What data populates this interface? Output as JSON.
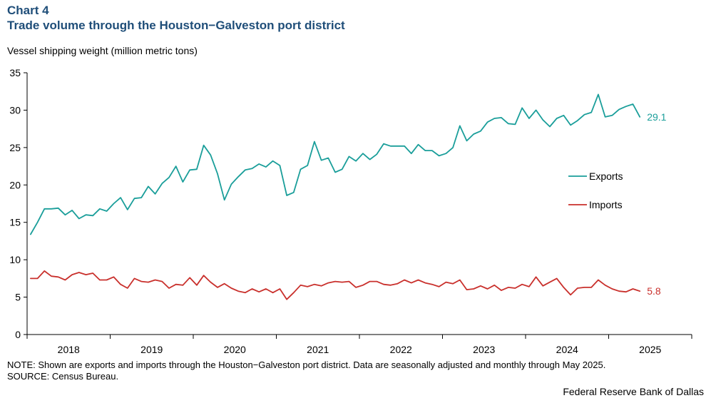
{
  "header": {
    "chart_number": "Chart 4",
    "title": "Trade volume through the Houston−Galveston port district"
  },
  "footer": {
    "note": "NOTE: Shown are exports and imports through the Houston−Galveston port district. Data are seasonally adjusted and monthly through May 2025.",
    "source": "SOURCE: Census Bureau.",
    "credit": "Federal Reserve Bank of Dallas"
  },
  "chart_data": {
    "type": "line",
    "title": "Trade volume through the Houston−Galveston port district",
    "ylabel": "Vessel shipping weight (million metric tons)",
    "xlabel": "",
    "ylim": [
      0,
      35
    ],
    "yticks": [
      0,
      5,
      10,
      15,
      20,
      25,
      30,
      35
    ],
    "year_labels": [
      "2018",
      "2019",
      "2020",
      "2021",
      "2022",
      "2023",
      "2024",
      "2025"
    ],
    "x_start": "2018-01",
    "x_end": "2025-05",
    "grid": false,
    "legend_position": "right",
    "series": [
      {
        "name": "Exports",
        "color": "#1a9e9a",
        "end_label": "29.1",
        "values": [
          13.4,
          15.0,
          16.8,
          16.8,
          16.9,
          16.0,
          16.6,
          15.5,
          16.0,
          15.9,
          16.8,
          16.5,
          17.5,
          18.3,
          16.7,
          18.2,
          18.3,
          19.8,
          18.8,
          20.2,
          21.0,
          22.5,
          20.4,
          22.0,
          22.1,
          25.3,
          24.0,
          21.5,
          18.0,
          20.1,
          21.1,
          22.0,
          22.2,
          22.8,
          22.4,
          23.2,
          22.6,
          18.6,
          19.0,
          22.1,
          22.6,
          25.8,
          23.3,
          23.6,
          21.7,
          22.1,
          23.8,
          23.2,
          24.2,
          23.4,
          24.1,
          25.5,
          25.2,
          25.2,
          25.2,
          24.2,
          25.4,
          24.6,
          24.6,
          23.9,
          24.2,
          25.0,
          27.9,
          25.9,
          26.8,
          27.2,
          28.4,
          28.9,
          29.0,
          28.2,
          28.1,
          30.3,
          28.9,
          30.0,
          28.7,
          27.8,
          28.9,
          29.3,
          28.0,
          28.6,
          29.4,
          29.7,
          32.1,
          29.1,
          29.3,
          30.1,
          30.5,
          30.8,
          29.1
        ]
      },
      {
        "name": "Imports",
        "color": "#c9302c",
        "end_label": "5.8",
        "values": [
          7.5,
          7.5,
          8.5,
          7.8,
          7.7,
          7.3,
          8.0,
          8.3,
          8.0,
          8.2,
          7.3,
          7.3,
          7.7,
          6.7,
          6.2,
          7.5,
          7.1,
          7.0,
          7.3,
          7.1,
          6.2,
          6.7,
          6.6,
          7.6,
          6.6,
          7.9,
          7.0,
          6.3,
          6.8,
          6.2,
          5.8,
          5.6,
          6.1,
          5.7,
          6.1,
          5.6,
          6.1,
          4.7,
          5.6,
          6.6,
          6.4,
          6.7,
          6.5,
          6.9,
          7.1,
          7.0,
          7.1,
          6.3,
          6.6,
          7.1,
          7.1,
          6.7,
          6.6,
          6.8,
          7.3,
          6.9,
          7.3,
          6.9,
          6.7,
          6.4,
          7.0,
          6.8,
          7.3,
          6.0,
          6.1,
          6.5,
          6.1,
          6.6,
          5.9,
          6.3,
          6.2,
          6.7,
          6.4,
          7.7,
          6.5,
          7.0,
          7.5,
          6.3,
          5.3,
          6.2,
          6.3,
          6.3,
          7.3,
          6.6,
          6.1,
          5.8,
          5.7,
          6.1,
          5.8
        ]
      }
    ]
  }
}
